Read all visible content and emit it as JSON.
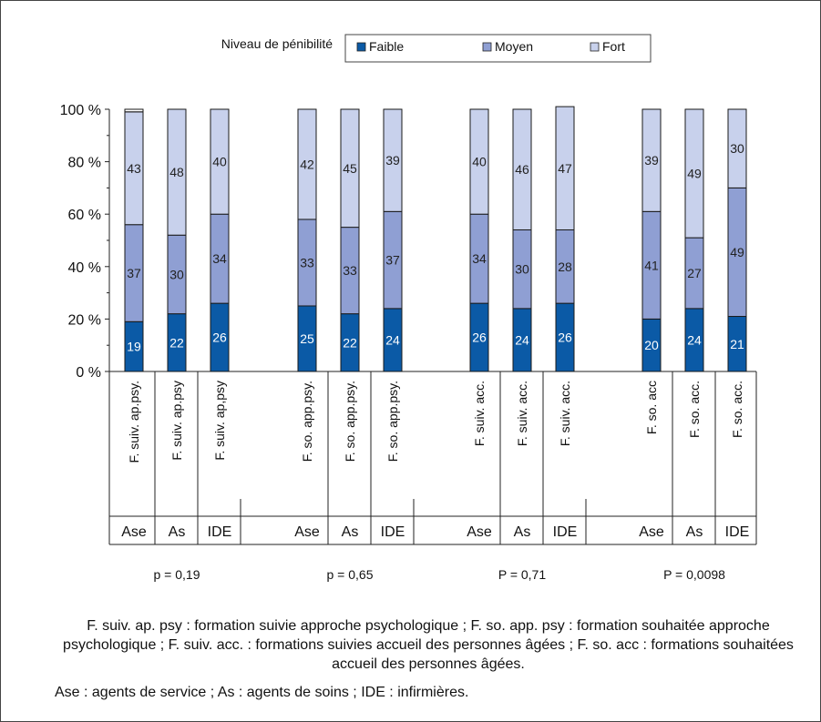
{
  "chart_data": {
    "type": "bar",
    "stacked": true,
    "legend": {
      "title": "Niveau de pénibilité",
      "placement": "top",
      "entries": [
        {
          "name": "Faible",
          "color": "#0b5aa6"
        },
        {
          "name": "Moyen",
          "color": "#8f9fd3"
        },
        {
          "name": "Fort",
          "color": "#c8d1ec"
        }
      ]
    },
    "y_ticks": [
      "0 %",
      "20 %",
      "40 %",
      "60 %",
      "80 %",
      "100 %"
    ],
    "ylim": [
      0,
      100
    ],
    "groups": [
      {
        "p_value": "p = 0,19",
        "bars": [
          {
            "category": "F. suiv. ap.psy.",
            "respondent": "Ase",
            "values": [
              19,
              37,
              43
            ]
          },
          {
            "category": "F. suiv. ap.psy",
            "respondent": "As",
            "values": [
              22,
              30,
              48
            ]
          },
          {
            "category": "F. suiv. ap,psy",
            "respondent": "IDE",
            "values": [
              26,
              34,
              40
            ]
          }
        ]
      },
      {
        "p_value": "p = 0,65",
        "bars": [
          {
            "category": "F. so. app.psy.",
            "respondent": "Ase",
            "values": [
              25,
              33,
              42
            ]
          },
          {
            "category": "F. so. app.psy.",
            "respondent": "As",
            "values": [
              22,
              33,
              45
            ]
          },
          {
            "category": "F. so. app.psy.",
            "respondent": "IDE",
            "values": [
              24,
              37,
              39
            ]
          }
        ]
      },
      {
        "p_value": "P = 0,71",
        "bars": [
          {
            "category": "F. suiv. acc.",
            "respondent": "Ase",
            "values": [
              26,
              34,
              40
            ]
          },
          {
            "category": "F. suiv. acc.",
            "respondent": "As",
            "values": [
              24,
              30,
              46
            ]
          },
          {
            "category": "F. suiv. acc.",
            "respondent": "IDE",
            "values": [
              26,
              28,
              47
            ]
          }
        ]
      },
      {
        "p_value": "P = 0,0098",
        "bars": [
          {
            "category": "F. so. acc",
            "respondent": "Ase",
            "values": [
              20,
              41,
              39
            ]
          },
          {
            "category": "F. so. acc.",
            "respondent": "As",
            "values": [
              24,
              27,
              49
            ]
          },
          {
            "category": "F. so. acc.",
            "respondent": "IDE",
            "values": [
              21,
              49,
              30
            ]
          }
        ]
      }
    ]
  },
  "caption": "F. suiv. ap. psy : formation suivie approche psychologique ; F. so. app. psy : formation souhaitée approche psychologique ; F. suiv. acc. : formations suivies accueil des personnes âgées ; F. so. acc : formations souhaitées accueil des personnes âgées.",
  "abbreviations": "Ase : agents de service ; As : agents de soins ; IDE : infirmières."
}
